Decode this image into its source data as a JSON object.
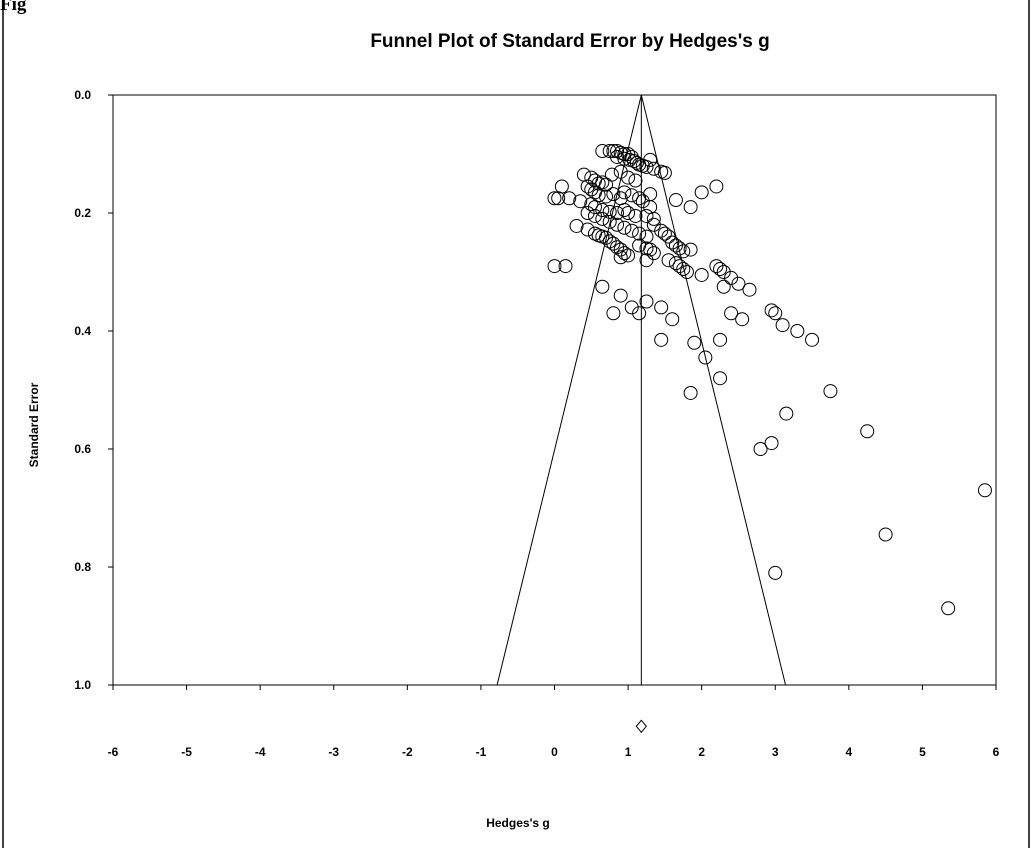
{
  "figure_label": "Fig",
  "chart_data": {
    "type": "scatter",
    "title": "Funnel Plot of Standard Error by Hedges's g",
    "xlabel": "Hedges's g",
    "ylabel": "Standard Error",
    "xlim": [
      -6,
      6
    ],
    "ylim": [
      0,
      1
    ],
    "y_inverted": true,
    "x_ticks": [
      "-6",
      "-5",
      "-4",
      "-3",
      "-2",
      "-1",
      "0",
      "1",
      "2",
      "3",
      "4",
      "5",
      "6"
    ],
    "y_ticks": [
      "0.0",
      "0.2",
      "0.4",
      "0.6",
      "0.8",
      "1.0"
    ],
    "grid": false,
    "pooled_effect": 1.18,
    "funnel": {
      "apex": [
        1.18,
        0.0
      ],
      "left_base": [
        -0.78,
        1.0
      ],
      "right_base": [
        3.14,
        1.0
      ]
    },
    "summary_diamond": {
      "x": 1.18,
      "y": 1.07
    },
    "points": [
      [
        0.75,
        0.095
      ],
      [
        0.8,
        0.095
      ],
      [
        0.85,
        0.095
      ],
      [
        0.9,
        0.098
      ],
      [
        0.95,
        0.1
      ],
      [
        1.0,
        0.1
      ],
      [
        1.05,
        0.105
      ],
      [
        0.85,
        0.105
      ],
      [
        0.95,
        0.108
      ],
      [
        1.02,
        0.11
      ],
      [
        1.08,
        0.112
      ],
      [
        1.12,
        0.115
      ],
      [
        1.15,
        0.118
      ],
      [
        1.2,
        0.12
      ],
      [
        1.25,
        0.122
      ],
      [
        1.3,
        0.11
      ],
      [
        1.35,
        0.125
      ],
      [
        1.45,
        0.13
      ],
      [
        1.5,
        0.132
      ],
      [
        0.65,
        0.095
      ],
      [
        0.4,
        0.135
      ],
      [
        0.5,
        0.14
      ],
      [
        0.55,
        0.145
      ],
      [
        0.6,
        0.15
      ],
      [
        0.65,
        0.148
      ],
      [
        0.7,
        0.152
      ],
      [
        0.78,
        0.135
      ],
      [
        0.9,
        0.13
      ],
      [
        1.0,
        0.14
      ],
      [
        1.1,
        0.145
      ],
      [
        0.45,
        0.155
      ],
      [
        0.5,
        0.16
      ],
      [
        0.55,
        0.165
      ],
      [
        0.6,
        0.17
      ],
      [
        0.7,
        0.172
      ],
      [
        0.8,
        0.168
      ],
      [
        0.9,
        0.175
      ],
      [
        0.95,
        0.165
      ],
      [
        1.05,
        0.17
      ],
      [
        1.15,
        0.175
      ],
      [
        1.2,
        0.18
      ],
      [
        1.3,
        0.168
      ],
      [
        1.3,
        0.19
      ],
      [
        1.65,
        0.178
      ],
      [
        1.85,
        0.19
      ],
      [
        2.0,
        0.165
      ],
      [
        2.2,
        0.155
      ],
      [
        0.0,
        0.175
      ],
      [
        0.05,
        0.175
      ],
      [
        0.1,
        0.155
      ],
      [
        0.2,
        0.175
      ],
      [
        0.35,
        0.18
      ],
      [
        0.5,
        0.185
      ],
      [
        0.55,
        0.19
      ],
      [
        0.65,
        0.195
      ],
      [
        0.75,
        0.198
      ],
      [
        0.85,
        0.2
      ],
      [
        0.95,
        0.195
      ],
      [
        1.0,
        0.2
      ],
      [
        1.1,
        0.205
      ],
      [
        1.25,
        0.205
      ],
      [
        1.35,
        0.21
      ],
      [
        0.45,
        0.2
      ],
      [
        0.55,
        0.205
      ],
      [
        0.65,
        0.21
      ],
      [
        0.75,
        0.215
      ],
      [
        0.85,
        0.22
      ],
      [
        0.95,
        0.225
      ],
      [
        1.05,
        0.23
      ],
      [
        1.15,
        0.235
      ],
      [
        1.25,
        0.24
      ],
      [
        1.35,
        0.22
      ],
      [
        1.45,
        0.23
      ],
      [
        1.5,
        0.235
      ],
      [
        1.55,
        0.24
      ],
      [
        1.6,
        0.25
      ],
      [
        1.65,
        0.255
      ],
      [
        1.7,
        0.26
      ],
      [
        1.75,
        0.265
      ],
      [
        1.85,
        0.262
      ],
      [
        0.3,
        0.222
      ],
      [
        0.45,
        0.228
      ],
      [
        0.55,
        0.235
      ],
      [
        0.6,
        0.238
      ],
      [
        0.65,
        0.24
      ],
      [
        0.7,
        0.242
      ],
      [
        0.75,
        0.248
      ],
      [
        0.8,
        0.252
      ],
      [
        0.85,
        0.258
      ],
      [
        0.9,
        0.262
      ],
      [
        0.95,
        0.268
      ],
      [
        1.0,
        0.272
      ],
      [
        0.9,
        0.275
      ],
      [
        1.15,
        0.255
      ],
      [
        1.25,
        0.26
      ],
      [
        1.3,
        0.262
      ],
      [
        1.35,
        0.268
      ],
      [
        1.25,
        0.28
      ],
      [
        1.55,
        0.28
      ],
      [
        1.65,
        0.285
      ],
      [
        1.7,
        0.29
      ],
      [
        1.75,
        0.295
      ],
      [
        1.8,
        0.3
      ],
      [
        2.0,
        0.305
      ],
      [
        2.2,
        0.29
      ],
      [
        2.25,
        0.295
      ],
      [
        2.3,
        0.3
      ],
      [
        2.4,
        0.31
      ],
      [
        2.5,
        0.32
      ],
      [
        2.65,
        0.33
      ],
      [
        2.3,
        0.325
      ],
      [
        0.0,
        0.29
      ],
      [
        0.15,
        0.29
      ],
      [
        0.65,
        0.325
      ],
      [
        0.9,
        0.34
      ],
      [
        1.25,
        0.35
      ],
      [
        1.45,
        0.36
      ],
      [
        1.05,
        0.36
      ],
      [
        1.6,
        0.38
      ],
      [
        1.15,
        0.37
      ],
      [
        0.8,
        0.37
      ],
      [
        2.4,
        0.37
      ],
      [
        2.55,
        0.38
      ],
      [
        2.95,
        0.365
      ],
      [
        3.0,
        0.37
      ],
      [
        3.1,
        0.39
      ],
      [
        3.3,
        0.4
      ],
      [
        3.5,
        0.415
      ],
      [
        1.45,
        0.415
      ],
      [
        1.9,
        0.42
      ],
      [
        2.25,
        0.415
      ],
      [
        2.05,
        0.445
      ],
      [
        2.25,
        0.48
      ],
      [
        1.85,
        0.505
      ],
      [
        3.75,
        0.502
      ],
      [
        3.15,
        0.54
      ],
      [
        2.95,
        0.59
      ],
      [
        2.8,
        0.6
      ],
      [
        4.25,
        0.57
      ],
      [
        5.85,
        0.67
      ],
      [
        4.5,
        0.745
      ],
      [
        3.0,
        0.81
      ],
      [
        5.35,
        0.87
      ]
    ]
  }
}
